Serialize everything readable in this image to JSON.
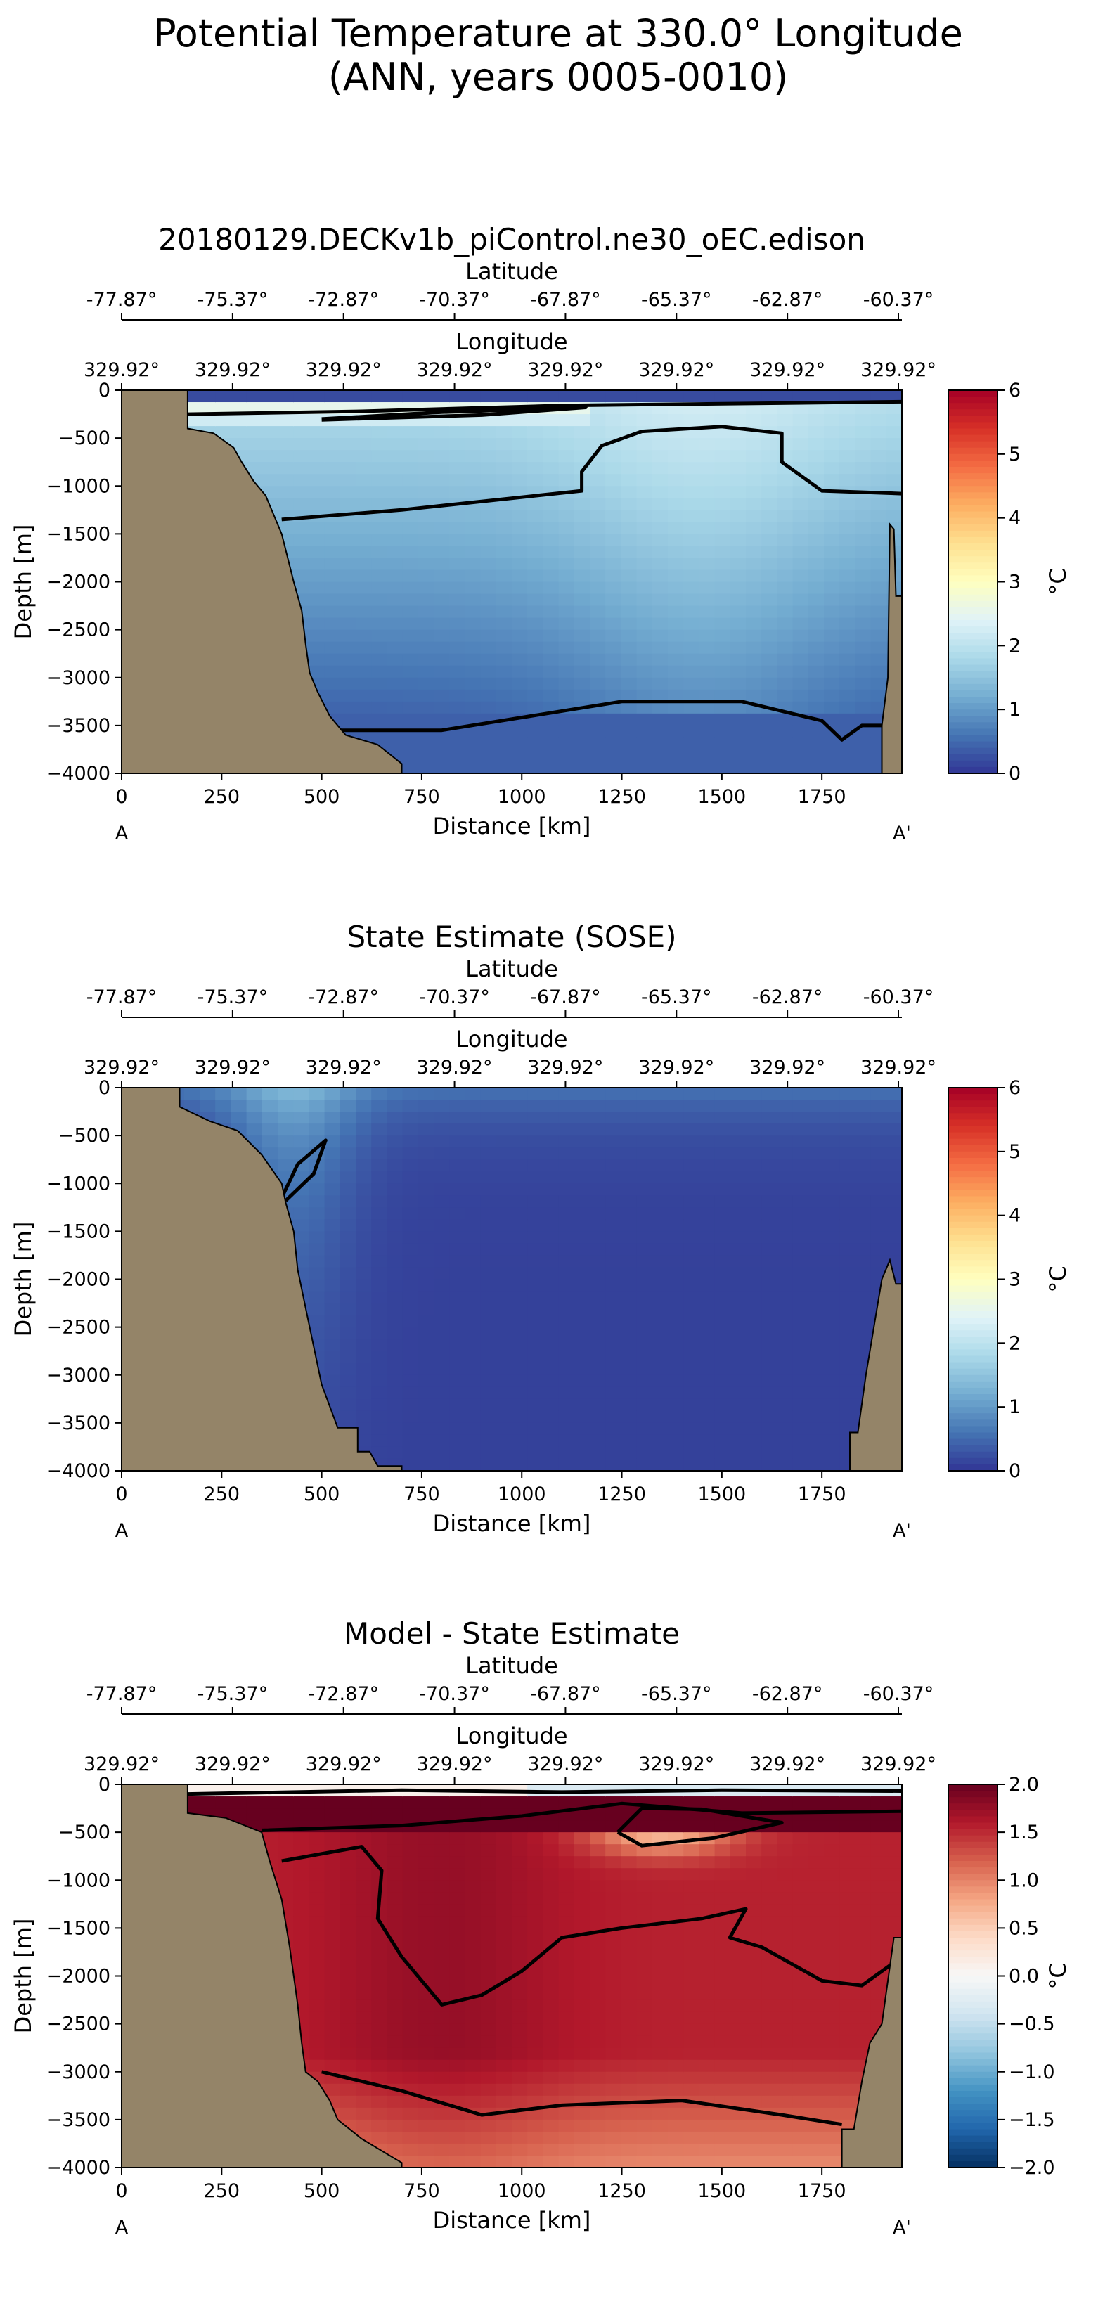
{
  "figure": {
    "title_line1": "Potential Temperature at 330.0° Longitude",
    "title_line2": "(ANN, years 0005-0010)"
  },
  "chart_data": [
    {
      "type": "heatmap",
      "title": "20180129.DECKv1b_piControl.ne30_oEC.edison",
      "xlabel": "Distance [km]",
      "ylabel": "Depth [m]",
      "xlim": [
        0,
        1950
      ],
      "ylim": [
        -4000,
        0
      ],
      "x_ticks": [
        0,
        250,
        500,
        750,
        1000,
        1250,
        1500,
        1750
      ],
      "y_ticks": [
        0,
        -500,
        -1000,
        -1500,
        -2000,
        -2500,
        -3000,
        -3500,
        -4000
      ],
      "top_axis_1": {
        "label": "Latitude",
        "ticks": [
          "-77.87°",
          "-75.37°",
          "-72.87°",
          "-70.37°",
          "-67.87°",
          "-65.37°",
          "-62.87°",
          "-60.37°"
        ]
      },
      "top_axis_2": {
        "label": "Longitude",
        "ticks": [
          "329.92°",
          "329.92°",
          "329.92°",
          "329.92°",
          "329.92°",
          "329.92°",
          "329.92°",
          "329.92°"
        ]
      },
      "endpoints": [
        "A",
        "A'"
      ],
      "colorbar": {
        "label": "°C",
        "min": 0,
        "max": 6,
        "ticks": [
          "0",
          "1",
          "2",
          "3",
          "4",
          "5",
          "6"
        ],
        "colormap": "RdYlBu_r"
      },
      "bathymetry": {
        "left": [
          [
            0,
            0
          ],
          [
            165,
            0
          ],
          [
            165,
            -400
          ],
          [
            230,
            -450
          ],
          [
            280,
            -600
          ],
          [
            300,
            -750
          ],
          [
            330,
            -950
          ],
          [
            360,
            -1100
          ],
          [
            380,
            -1300
          ],
          [
            400,
            -1500
          ],
          [
            430,
            -2000
          ],
          [
            450,
            -2300
          ],
          [
            460,
            -2650
          ],
          [
            470,
            -2950
          ],
          [
            490,
            -3150
          ],
          [
            520,
            -3400
          ],
          [
            560,
            -3600
          ],
          [
            640,
            -3700
          ],
          [
            700,
            -3900
          ],
          [
            700,
            -4000
          ]
        ],
        "right": [
          [
            1950,
            -4000
          ],
          [
            1900,
            -4000
          ],
          [
            1900,
            -3500
          ],
          [
            1915,
            -3000
          ],
          [
            1920,
            -1400
          ],
          [
            1930,
            -1450
          ],
          [
            1935,
            -2150
          ],
          [
            1950,
            -2150
          ]
        ]
      },
      "contours": [
        {
          "level": 0.5,
          "points": [
            [
              165,
              -250
            ],
            [
              600,
              -220
            ],
            [
              1100,
              -160
            ],
            [
              1950,
              -120
            ]
          ]
        },
        {
          "level": 1.0,
          "points": [
            [
              400,
              -1350
            ],
            [
              700,
              -1250
            ],
            [
              1150,
              -1050
            ],
            [
              1150,
              -850
            ],
            [
              1200,
              -580
            ],
            [
              1300,
              -430
            ],
            [
              1500,
              -380
            ],
            [
              1650,
              -450
            ],
            [
              1650,
              -750
            ],
            [
              1750,
              -1050
            ],
            [
              1950,
              -1080
            ]
          ]
        },
        {
          "level": 0.5,
          "points": [
            [
              530,
              -3550
            ],
            [
              800,
              -3550
            ],
            [
              1250,
              -3250
            ],
            [
              1550,
              -3250
            ],
            [
              1750,
              -3450
            ],
            [
              1800,
              -3650
            ],
            [
              1850,
              -3500
            ],
            [
              1900,
              -3500
            ]
          ]
        },
        {
          "level": 3.0,
          "points": [
            [
              500,
              -300
            ],
            [
              800,
              -230
            ],
            [
              1160,
              -180
            ],
            [
              900,
              -260
            ],
            [
              500,
              -310
            ]
          ]
        }
      ]
    },
    {
      "type": "heatmap",
      "title": "State Estimate (SOSE)",
      "xlabel": "Distance [km]",
      "ylabel": "Depth [m]",
      "xlim": [
        0,
        1950
      ],
      "ylim": [
        -4000,
        0
      ],
      "x_ticks": [
        0,
        250,
        500,
        750,
        1000,
        1250,
        1500,
        1750
      ],
      "y_ticks": [
        0,
        -500,
        -1000,
        -1500,
        -2000,
        -2500,
        -3000,
        -3500,
        -4000
      ],
      "top_axis_1": {
        "label": "Latitude",
        "ticks": [
          "-77.87°",
          "-75.37°",
          "-72.87°",
          "-70.37°",
          "-67.87°",
          "-65.37°",
          "-62.87°",
          "-60.37°"
        ]
      },
      "top_axis_2": {
        "label": "Longitude",
        "ticks": [
          "329.92°",
          "329.92°",
          "329.92°",
          "329.92°",
          "329.92°",
          "329.92°",
          "329.92°",
          "329.92°"
        ]
      },
      "endpoints": [
        "A",
        "A'"
      ],
      "colorbar": {
        "label": "°C",
        "min": 0,
        "max": 6,
        "ticks": [
          "0",
          "1",
          "2",
          "3",
          "4",
          "5",
          "6"
        ],
        "colormap": "RdYlBu_r"
      },
      "bathymetry": {
        "left": [
          [
            0,
            0
          ],
          [
            145,
            0
          ],
          [
            145,
            -200
          ],
          [
            220,
            -350
          ],
          [
            290,
            -450
          ],
          [
            350,
            -700
          ],
          [
            400,
            -1000
          ],
          [
            410,
            -1200
          ],
          [
            430,
            -1500
          ],
          [
            440,
            -1900
          ],
          [
            460,
            -2300
          ],
          [
            480,
            -2700
          ],
          [
            500,
            -3100
          ],
          [
            540,
            -3550
          ],
          [
            590,
            -3550
          ],
          [
            590,
            -3800
          ],
          [
            620,
            -3800
          ],
          [
            640,
            -3950
          ],
          [
            700,
            -3950
          ],
          [
            700,
            -4000
          ]
        ],
        "right": [
          [
            1950,
            -4000
          ],
          [
            1820,
            -4000
          ],
          [
            1820,
            -3600
          ],
          [
            1840,
            -3600
          ],
          [
            1850,
            -3300
          ],
          [
            1860,
            -3000
          ],
          [
            1900,
            -2000
          ],
          [
            1920,
            -1800
          ],
          [
            1935,
            -2050
          ],
          [
            1950,
            -2050
          ]
        ]
      },
      "contours": [
        {
          "level": 1.0,
          "points": [
            [
              400,
              -1150
            ],
            [
              440,
              -800
            ],
            [
              510,
              -550
            ],
            [
              480,
              -900
            ],
            [
              410,
              -1180
            ]
          ]
        }
      ]
    },
    {
      "type": "heatmap",
      "title": "Model - State Estimate",
      "xlabel": "Distance [km]",
      "ylabel": "Depth [m]",
      "xlim": [
        0,
        1950
      ],
      "ylim": [
        -4000,
        0
      ],
      "x_ticks": [
        0,
        250,
        500,
        750,
        1000,
        1250,
        1500,
        1750
      ],
      "y_ticks": [
        0,
        -500,
        -1000,
        -1500,
        -2000,
        -2500,
        -3000,
        -3500,
        -4000
      ],
      "top_axis_1": {
        "label": "Latitude",
        "ticks": [
          "-77.87°",
          "-75.37°",
          "-72.87°",
          "-70.37°",
          "-67.87°",
          "-65.37°",
          "-62.87°",
          "-60.37°"
        ]
      },
      "top_axis_2": {
        "label": "Longitude",
        "ticks": [
          "329.92°",
          "329.92°",
          "329.92°",
          "329.92°",
          "329.92°",
          "329.92°",
          "329.92°",
          "329.92°"
        ]
      },
      "endpoints": [
        "A",
        "A'"
      ],
      "colorbar": {
        "label": "°C",
        "min": -2.0,
        "max": 2.0,
        "ticks": [
          "2.0",
          "1.5",
          "1.0",
          "0.5",
          "0.0",
          "−0.5",
          "−1.0",
          "−1.5",
          "−2.0"
        ],
        "colormap": "RdBu_r"
      },
      "bathymetry": {
        "left": [
          [
            0,
            0
          ],
          [
            165,
            0
          ],
          [
            165,
            -300
          ],
          [
            260,
            -350
          ],
          [
            350,
            -500
          ],
          [
            370,
            -800
          ],
          [
            400,
            -1200
          ],
          [
            420,
            -1700
          ],
          [
            440,
            -2300
          ],
          [
            450,
            -2700
          ],
          [
            460,
            -3000
          ],
          [
            490,
            -3100
          ],
          [
            520,
            -3300
          ],
          [
            540,
            -3500
          ],
          [
            600,
            -3700
          ],
          [
            660,
            -3850
          ],
          [
            700,
            -3950
          ],
          [
            700,
            -4000
          ]
        ],
        "right": [
          [
            1950,
            -4000
          ],
          [
            1800,
            -4000
          ],
          [
            1800,
            -3600
          ],
          [
            1830,
            -3600
          ],
          [
            1850,
            -3100
          ],
          [
            1870,
            -2700
          ],
          [
            1900,
            -2500
          ],
          [
            1930,
            -1600
          ],
          [
            1950,
            -1600
          ]
        ]
      },
      "contours": [
        {
          "level": 1.5,
          "points": [
            [
              400,
              -800
            ],
            [
              600,
              -650
            ],
            [
              650,
              -900
            ],
            [
              640,
              -1400
            ],
            [
              700,
              -1800
            ],
            [
              800,
              -2300
            ],
            [
              900,
              -2200
            ],
            [
              1000,
              -1950
            ],
            [
              1100,
              -1600
            ],
            [
              1250,
              -1500
            ],
            [
              1450,
              -1400
            ],
            [
              1560,
              -1300
            ],
            [
              1520,
              -1600
            ],
            [
              1600,
              -1700
            ],
            [
              1750,
              -2050
            ],
            [
              1850,
              -2100
            ],
            [
              1950,
              -1800
            ]
          ]
        },
        {
          "level": 1.0,
          "points": [
            [
              500,
              -3000
            ],
            [
              700,
              -3200
            ],
            [
              900,
              -3450
            ],
            [
              1100,
              -3350
            ],
            [
              1400,
              -3300
            ],
            [
              1650,
              -3450
            ],
            [
              1800,
              -3550
            ]
          ]
        },
        {
          "level": 1.0,
          "points": [
            [
              1240,
              -500
            ],
            [
              1300,
              -250
            ],
            [
              1450,
              -260
            ],
            [
              1650,
              -400
            ],
            [
              1480,
              -560
            ],
            [
              1300,
              -640
            ],
            [
              1240,
              -500
            ]
          ]
        },
        {
          "level": 1.5,
          "points": [
            [
              350,
              -480
            ],
            [
              700,
              -430
            ],
            [
              1000,
              -330
            ],
            [
              1250,
              -200
            ],
            [
              1550,
              -300
            ],
            [
              1950,
              -280
            ]
          ]
        },
        {
          "level": 0.0,
          "points": [
            [
              165,
              -100
            ],
            [
              700,
              -60
            ],
            [
              1100,
              -80
            ],
            [
              1500,
              -60
            ],
            [
              1950,
              -70
            ]
          ]
        }
      ]
    }
  ]
}
